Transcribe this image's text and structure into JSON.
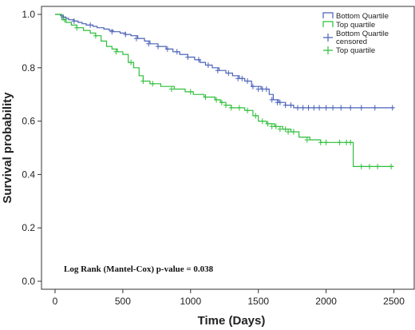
{
  "chart_data": {
    "type": "line",
    "subtype": "kaplan-meier step",
    "xlabel": "Time (Days)",
    "ylabel": "Survival probability",
    "xlim": [
      -100,
      2650
    ],
    "ylim": [
      -0.03,
      1.03
    ],
    "xticks": [
      0,
      500,
      1000,
      1500,
      2000,
      2500
    ],
    "yticks": [
      0.0,
      0.2,
      0.4,
      0.6,
      0.8,
      1.0
    ],
    "ytick_labels": [
      "0.0",
      "0.2",
      "0.4",
      "0.6",
      "0.8",
      "1.0"
    ],
    "grid": false,
    "legend_position": "top-right",
    "legend": [
      {
        "label": "Bottom Quartile",
        "kind": "line",
        "color": "#4a62b8"
      },
      {
        "label": "Top quartile",
        "kind": "line",
        "color": "#2fbf3a"
      },
      {
        "label": "Bottom Quartile censored",
        "label_lines": [
          "Bottom Quartile",
          "censored"
        ],
        "kind": "cross",
        "color": "#4a62b8"
      },
      {
        "label": "Top quartile",
        "kind": "cross",
        "color": "#2fbf3a"
      }
    ],
    "annotation": "Log Rank (Mantel-Cox) p-value = 0.038",
    "series": [
      {
        "name": "Bottom Quartile",
        "color": "#4a62b8",
        "x": [
          0,
          40,
          60,
          80,
          100,
          140,
          170,
          200,
          230,
          280,
          310,
          360,
          400,
          430,
          480,
          520,
          560,
          610,
          660,
          700,
          760,
          820,
          870,
          920,
          980,
          1030,
          1070,
          1110,
          1160,
          1210,
          1260,
          1310,
          1360,
          1400,
          1450,
          1520,
          1580,
          1610,
          1650,
          1700,
          1760,
          2500
        ],
        "y": [
          1.0,
          0.995,
          0.99,
          0.985,
          0.98,
          0.975,
          0.97,
          0.965,
          0.96,
          0.955,
          0.95,
          0.945,
          0.94,
          0.935,
          0.93,
          0.925,
          0.92,
          0.91,
          0.9,
          0.89,
          0.88,
          0.87,
          0.86,
          0.85,
          0.84,
          0.83,
          0.82,
          0.81,
          0.8,
          0.79,
          0.78,
          0.77,
          0.76,
          0.75,
          0.73,
          0.72,
          0.7,
          0.68,
          0.67,
          0.66,
          0.65,
          0.65
        ],
        "censored_x": [
          60,
          140,
          260,
          420,
          520,
          600,
          690,
          760,
          830,
          900,
          980,
          1060,
          1130,
          1200,
          1280,
          1350,
          1380,
          1420,
          1460,
          1500,
          1530,
          1560,
          1600,
          1640,
          1660,
          1700,
          1740,
          1790,
          1830,
          1870,
          1910,
          1950,
          2000,
          2050,
          2110,
          2180,
          2260,
          2360,
          2490
        ],
        "censored_y": [
          0.99,
          0.975,
          0.96,
          0.935,
          0.925,
          0.91,
          0.89,
          0.88,
          0.87,
          0.86,
          0.84,
          0.83,
          0.81,
          0.79,
          0.78,
          0.76,
          0.76,
          0.75,
          0.73,
          0.72,
          0.72,
          0.72,
          0.68,
          0.67,
          0.67,
          0.66,
          0.66,
          0.65,
          0.65,
          0.65,
          0.65,
          0.65,
          0.65,
          0.65,
          0.65,
          0.65,
          0.65,
          0.65,
          0.65
        ]
      },
      {
        "name": "Top quartile",
        "color": "#2fbf3a",
        "x": [
          0,
          50,
          80,
          120,
          160,
          210,
          260,
          300,
          340,
          380,
          420,
          460,
          500,
          540,
          580,
          620,
          650,
          700,
          780,
          880,
          960,
          1020,
          1100,
          1180,
          1220,
          1260,
          1300,
          1350,
          1400,
          1460,
          1500,
          1560,
          1620,
          1680,
          1740,
          1800,
          1880,
          1960,
          2020,
          2200,
          2500
        ],
        "y": [
          1.0,
          0.98,
          0.97,
          0.96,
          0.95,
          0.94,
          0.93,
          0.92,
          0.9,
          0.88,
          0.87,
          0.86,
          0.85,
          0.82,
          0.8,
          0.77,
          0.75,
          0.74,
          0.73,
          0.72,
          0.71,
          0.7,
          0.69,
          0.68,
          0.67,
          0.66,
          0.65,
          0.65,
          0.64,
          0.62,
          0.6,
          0.59,
          0.58,
          0.57,
          0.56,
          0.54,
          0.53,
          0.52,
          0.52,
          0.43,
          0.43
        ],
        "censored_x": [
          70,
          160,
          300,
          450,
          560,
          650,
          720,
          860,
          1000,
          1110,
          1190,
          1230,
          1260,
          1300,
          1360,
          1420,
          1480,
          1530,
          1570,
          1600,
          1630,
          1660,
          1700,
          1720,
          1760,
          1860,
          1960,
          2000,
          2100,
          2150,
          2180,
          2260,
          2320,
          2380,
          2480
        ],
        "censored_y": [
          0.98,
          0.95,
          0.92,
          0.86,
          0.82,
          0.75,
          0.74,
          0.72,
          0.71,
          0.69,
          0.68,
          0.67,
          0.66,
          0.65,
          0.65,
          0.64,
          0.62,
          0.6,
          0.59,
          0.58,
          0.58,
          0.57,
          0.57,
          0.56,
          0.56,
          0.53,
          0.52,
          0.52,
          0.52,
          0.52,
          0.52,
          0.43,
          0.43,
          0.43,
          0.43
        ]
      }
    ]
  }
}
